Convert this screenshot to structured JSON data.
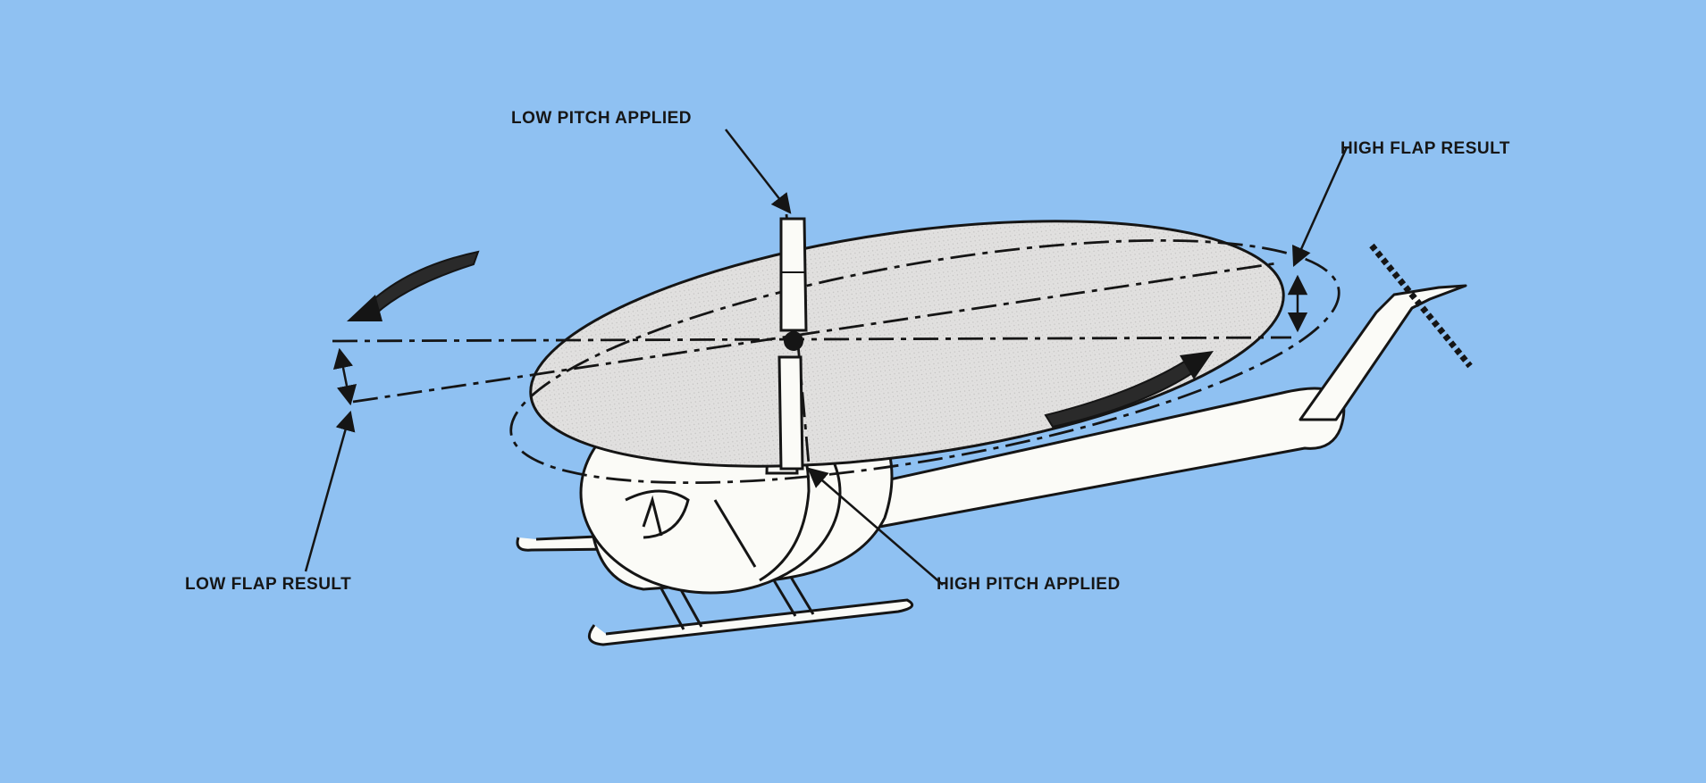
{
  "labels": {
    "low_pitch_applied": "LOW PITCH APPLIED",
    "high_flap_result": "HIGH FLAP RESULT",
    "low_flap_result": "LOW FLAP RESULT",
    "high_pitch_applied": "HIGH PITCH APPLIED"
  },
  "colors": {
    "background": "#8fc1f2",
    "line": "#151515",
    "helicopter_fill": "#fbfbf7",
    "rotor_disc_fill": "#e0dfde"
  }
}
